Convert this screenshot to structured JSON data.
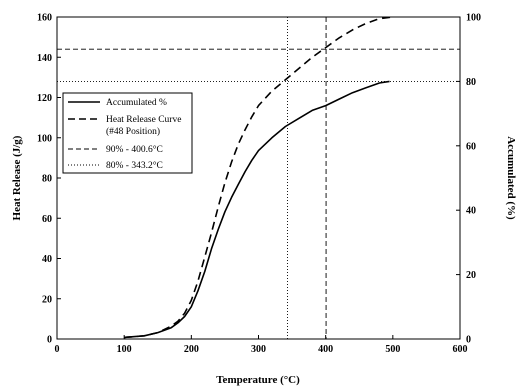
{
  "chart_data": {
    "type": "line",
    "title": "",
    "xlabel": "Temperature (°C)",
    "ylabel": "Heat Release (J/g)",
    "y2label": "Accumulated (%)",
    "xlim": [
      0,
      600
    ],
    "ylim": [
      0,
      160
    ],
    "y2lim": [
      0,
      100
    ],
    "x_ticks": [
      "0",
      "100",
      "200",
      "300",
      "400",
      "500",
      "600"
    ],
    "y_ticks": [
      "0",
      "20",
      "40",
      "60",
      "80",
      "100",
      "120",
      "140",
      "160"
    ],
    "y2_ticks": [
      "0",
      "20",
      "40",
      "60",
      "80",
      "100"
    ],
    "grid": false,
    "legend_position": "left",
    "series": [
      {
        "name": "Accumulated %",
        "axis": "right",
        "style": "solid",
        "x": [
          100,
          130,
          150,
          170,
          180,
          190,
          200,
          210,
          220,
          230,
          240,
          250,
          260,
          270,
          280,
          290,
          300,
          320,
          340,
          360,
          380,
          400,
          420,
          440,
          460,
          480,
          495
        ],
        "y": [
          0.5,
          1,
          2,
          3.5,
          5,
          7,
          10,
          15,
          21,
          28,
          34,
          39.5,
          44,
          48,
          52,
          55.5,
          58.5,
          62.5,
          66,
          68.5,
          71,
          72.5,
          74.5,
          76.5,
          78,
          79.5,
          80
        ]
      },
      {
        "name": "Heat Release Curve (#48 Position)",
        "axis": "right",
        "style": "dashed",
        "x": [
          100,
          130,
          150,
          170,
          180,
          190,
          200,
          210,
          220,
          230,
          240,
          250,
          260,
          270,
          280,
          290,
          300,
          320,
          340,
          360,
          380,
          400,
          420,
          440,
          460,
          480,
          500
        ],
        "y": [
          0.5,
          1,
          2,
          4,
          5.5,
          8,
          12,
          18,
          25.5,
          33,
          41,
          48.5,
          55,
          60.5,
          65,
          69,
          72.5,
          77,
          80.5,
          84,
          87.5,
          90.5,
          93.5,
          96,
          98,
          99.5,
          100
        ]
      }
    ],
    "reference_lines": [
      {
        "name": "90% - 400.6°C",
        "style": "dashed",
        "x": 400.6,
        "y2": 90
      },
      {
        "name": "80% - 343.2°C",
        "style": "dotted",
        "x": 343.2,
        "y2": 80
      }
    ],
    "legend": {
      "line1": "Accumulated %",
      "line2a": "Heat Release Curve",
      "line2b": "(#48 Position)",
      "line3": "90% - 400.6°C",
      "line4": "80% - 343.2°C"
    }
  }
}
